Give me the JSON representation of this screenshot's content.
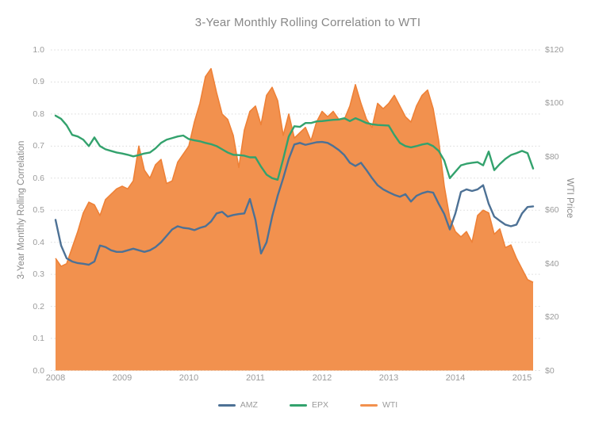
{
  "title": "3-Year Monthly Rolling Correlation to WTI",
  "left_axis": {
    "title": "3-Year Monthly Rolling Correlation",
    "ticks": [
      "1.0",
      "0.9",
      "0.8",
      "0.7",
      "0.6",
      "0.5",
      "0.4",
      "0.3",
      "0.2",
      "0.1",
      "0.0"
    ],
    "min": 0,
    "max": 1
  },
  "right_axis": {
    "title": "WTI Price",
    "ticks": [
      "$120",
      "$100",
      "$80",
      "$60",
      "$40",
      "$20",
      "$0"
    ],
    "min": 0,
    "max": 120
  },
  "x_axis": {
    "ticks": [
      "2008",
      "2009",
      "2010",
      "2011",
      "2012",
      "2013",
      "2014",
      "2015"
    ]
  },
  "legend": [
    {
      "label": "AMZ",
      "color": "#4D7195"
    },
    {
      "label": "EPX",
      "color": "#33A26D"
    },
    {
      "label": "WTI",
      "color": "#F2914E"
    }
  ],
  "colors": {
    "amz_line": "#4D7195",
    "epx_line": "#33A26D",
    "wti_fill": "#F2914E",
    "wti_edge": "#EE8137",
    "grid": "#D9D9D9",
    "title_text": "#878787",
    "tick_text": "#9B9B9B",
    "background": "#FFFFFF"
  },
  "chart_data": {
    "type": "line",
    "x_start": "2008-01",
    "x_interval": "monthly",
    "x_tick_labels": [
      "2008",
      "2009",
      "2010",
      "2011",
      "2012",
      "2013",
      "2014",
      "2015"
    ],
    "grid": "horizontal dotted every 0.1 (left scale)",
    "legend_position": "bottom center",
    "left_ylim": [
      0,
      1
    ],
    "right_ylim": [
      0,
      120
    ],
    "series": [
      {
        "name": "AMZ",
        "type": "line",
        "axis": "left",
        "color": "#4D7195",
        "values": [
          0.47,
          0.39,
          0.35,
          0.34,
          0.335,
          0.333,
          0.33,
          0.34,
          0.39,
          0.385,
          0.375,
          0.37,
          0.37,
          0.375,
          0.38,
          0.375,
          0.37,
          0.375,
          0.385,
          0.4,
          0.42,
          0.44,
          0.45,
          0.445,
          0.443,
          0.438,
          0.445,
          0.45,
          0.465,
          0.49,
          0.495,
          0.48,
          0.485,
          0.488,
          0.49,
          0.535,
          0.47,
          0.365,
          0.4,
          0.48,
          0.545,
          0.6,
          0.66,
          0.705,
          0.71,
          0.704,
          0.708,
          0.712,
          0.713,
          0.71,
          0.7,
          0.688,
          0.672,
          0.648,
          0.638,
          0.648,
          0.625,
          0.6,
          0.578,
          0.565,
          0.556,
          0.548,
          0.542,
          0.55,
          0.527,
          0.545,
          0.553,
          0.558,
          0.555,
          0.52,
          0.488,
          0.44,
          0.49,
          0.557,
          0.565,
          0.56,
          0.565,
          0.578,
          0.52,
          0.48,
          0.467,
          0.455,
          0.45,
          0.455,
          0.49,
          0.51,
          0.512
        ]
      },
      {
        "name": "EPX",
        "type": "line",
        "axis": "left",
        "color": "#33A26D",
        "values": [
          0.795,
          0.785,
          0.765,
          0.735,
          0.73,
          0.72,
          0.7,
          0.727,
          0.7,
          0.69,
          0.685,
          0.68,
          0.677,
          0.673,
          0.668,
          0.672,
          0.677,
          0.68,
          0.693,
          0.71,
          0.72,
          0.725,
          0.73,
          0.733,
          0.722,
          0.718,
          0.715,
          0.71,
          0.706,
          0.7,
          0.69,
          0.68,
          0.673,
          0.672,
          0.67,
          0.665,
          0.665,
          0.636,
          0.611,
          0.6,
          0.595,
          0.66,
          0.73,
          0.762,
          0.76,
          0.772,
          0.772,
          0.777,
          0.778,
          0.78,
          0.782,
          0.783,
          0.787,
          0.778,
          0.787,
          0.78,
          0.772,
          0.768,
          0.766,
          0.765,
          0.764,
          0.735,
          0.71,
          0.7,
          0.696,
          0.7,
          0.705,
          0.708,
          0.7,
          0.685,
          0.655,
          0.6,
          0.62,
          0.64,
          0.645,
          0.648,
          0.65,
          0.64,
          0.683,
          0.625,
          0.644,
          0.66,
          0.672,
          0.678,
          0.685,
          0.678,
          0.63
        ]
      },
      {
        "name": "WTI",
        "type": "area",
        "axis": "right",
        "color": "#F2914E",
        "values": [
          42,
          39,
          40,
          46,
          52,
          59,
          63,
          62,
          58,
          64,
          66,
          68,
          69,
          68,
          71,
          84,
          75,
          72,
          77,
          79,
          70,
          71,
          78,
          81,
          84,
          93,
          100,
          110,
          113,
          104,
          96,
          94,
          88,
          76,
          90,
          97,
          99,
          92,
          103,
          106,
          101,
          88,
          96,
          87,
          89,
          91,
          86,
          93,
          97,
          95,
          97,
          94,
          94,
          99,
          107,
          100,
          94,
          91,
          100,
          98,
          100,
          103,
          99,
          95,
          93,
          99,
          103,
          105,
          98,
          86,
          69,
          57,
          52,
          50,
          52,
          48,
          58,
          60,
          59,
          51,
          53,
          46,
          47,
          42,
          38,
          34,
          33
        ]
      }
    ]
  }
}
